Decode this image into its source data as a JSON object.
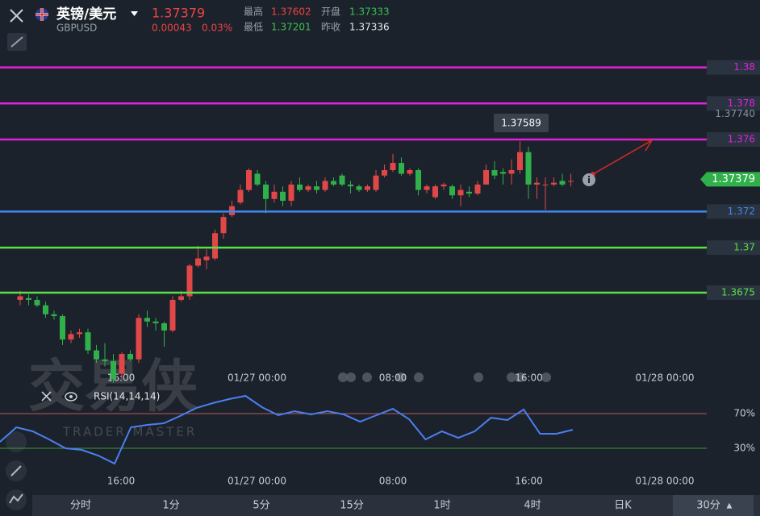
{
  "header": {
    "name": "英镑/美元",
    "symbol": "GBPUSD",
    "price": 1.37379,
    "change": 0.00043,
    "change_pct": "0.03%",
    "high_label": "最高",
    "high": 1.37602,
    "open_label": "开盘",
    "open": 1.37333,
    "low_label": "最低",
    "low": 1.37201,
    "prev_label": "昨收",
    "prev": 1.37336
  },
  "chart": {
    "up_color": "#e04848",
    "down_color": "#2fb04a",
    "levels": [
      {
        "value": 1.38,
        "color": "#e020e0"
      },
      {
        "value": 1.378,
        "color": "#e020e0"
      },
      {
        "value": 1.376,
        "color": "#e020e0"
      },
      {
        "value": 1.372,
        "color": "#3f86f0"
      },
      {
        "value": 1.37,
        "color": "#58e048"
      },
      {
        "value": 1.3675,
        "color": "#58e048"
      }
    ],
    "scale_mark": {
      "value": 1.3774,
      "label": "1.37740"
    },
    "tooltip": 1.37589,
    "candles": [
      [
        1.3671,
        1.3676,
        1.3668,
        1.3673
      ],
      [
        1.3672,
        1.3674,
        1.3668,
        1.3671
      ],
      [
        1.3671,
        1.3673,
        1.3667,
        1.3668
      ],
      [
        1.3668,
        1.367,
        1.3661,
        1.3663
      ],
      [
        1.3663,
        1.3665,
        1.366,
        1.3662
      ],
      [
        1.3662,
        1.3663,
        1.3646,
        1.3649
      ],
      [
        1.3649,
        1.3654,
        1.3647,
        1.3652
      ],
      [
        1.3652,
        1.3655,
        1.365,
        1.3653
      ],
      [
        1.3653,
        1.3655,
        1.3641,
        1.3643
      ],
      [
        1.3643,
        1.3646,
        1.3636,
        1.3638
      ],
      [
        1.3638,
        1.3647,
        1.3634,
        1.3637
      ],
      [
        1.3637,
        1.3641,
        1.3625,
        1.3627
      ],
      [
        1.363,
        1.3642,
        1.3627,
        1.3641
      ],
      [
        1.3641,
        1.3643,
        1.3637,
        1.3638
      ],
      [
        1.3638,
        1.3663,
        1.3636,
        1.3661
      ],
      [
        1.3661,
        1.3665,
        1.3656,
        1.3659
      ],
      [
        1.3659,
        1.3661,
        1.3654,
        1.3658
      ],
      [
        1.3658,
        1.3659,
        1.3645,
        1.3654
      ],
      [
        1.3654,
        1.3673,
        1.3653,
        1.3671
      ],
      [
        1.3671,
        1.3676,
        1.367,
        1.3673
      ],
      [
        1.3673,
        1.3691,
        1.3671,
        1.369
      ],
      [
        1.369,
        1.3701,
        1.3689,
        1.3694
      ],
      [
        1.3693,
        1.3699,
        1.3688,
        1.3695
      ],
      [
        1.3694,
        1.371,
        1.3693,
        1.3708
      ],
      [
        1.3708,
        1.3719,
        1.3705,
        1.3717
      ],
      [
        1.3718,
        1.3726,
        1.3717,
        1.3723
      ],
      [
        1.3725,
        1.3735,
        1.3724,
        1.3732
      ],
      [
        1.3732,
        1.3744,
        1.3731,
        1.3743
      ],
      [
        1.3741,
        1.3743,
        1.3734,
        1.3735
      ],
      [
        1.3735,
        1.3737,
        1.3719,
        1.3727
      ],
      [
        1.3727,
        1.3735,
        1.3725,
        1.3731
      ],
      [
        1.3731,
        1.3734,
        1.3723,
        1.3726
      ],
      [
        1.3726,
        1.3737,
        1.3723,
        1.3735
      ],
      [
        1.3735,
        1.3739,
        1.3731,
        1.3732
      ],
      [
        1.3732,
        1.3735,
        1.3731,
        1.3734
      ],
      [
        1.3734,
        1.3737,
        1.373,
        1.3732
      ],
      [
        1.3732,
        1.3739,
        1.3731,
        1.3737
      ],
      [
        1.3737,
        1.3739,
        1.3734,
        1.3735
      ],
      [
        1.374,
        1.3741,
        1.3734,
        1.3735
      ],
      [
        1.3735,
        1.3737,
        1.373,
        1.3734
      ],
      [
        1.3734,
        1.3735,
        1.3731,
        1.3732
      ],
      [
        1.3732,
        1.3735,
        1.3731,
        1.3734
      ],
      [
        1.3732,
        1.3743,
        1.3731,
        1.374
      ],
      [
        1.374,
        1.3746,
        1.3739,
        1.3743
      ],
      [
        1.3743,
        1.3752,
        1.3742,
        1.3747
      ],
      [
        1.3747,
        1.375,
        1.374,
        1.3741
      ],
      [
        1.3741,
        1.3744,
        1.374,
        1.3743
      ],
      [
        1.3743,
        1.3744,
        1.3729,
        1.3732
      ],
      [
        1.3732,
        1.3735,
        1.373,
        1.3734
      ],
      [
        1.3728,
        1.3735,
        1.3727,
        1.3734
      ],
      [
        1.3734,
        1.3736,
        1.3732,
        1.3735
      ],
      [
        1.3734,
        1.3735,
        1.3727,
        1.3729
      ],
      [
        1.3729,
        1.3735,
        1.3723,
        1.3732
      ],
      [
        1.3731,
        1.3734,
        1.3728,
        1.373
      ],
      [
        1.373,
        1.3737,
        1.3729,
        1.3735
      ],
      [
        1.3735,
        1.3746,
        1.3735,
        1.3743
      ],
      [
        1.3743,
        1.3748,
        1.3738,
        1.374
      ],
      [
        1.3742,
        1.3744,
        1.3735,
        1.3741
      ],
      [
        1.3741,
        1.3749,
        1.3735,
        1.3743
      ],
      [
        1.3743,
        1.3759,
        1.3741,
        1.3753
      ],
      [
        1.3753,
        1.3756,
        1.3727,
        1.3735
      ],
      [
        1.3735,
        1.3739,
        1.3727,
        1.3736
      ],
      [
        1.3735,
        1.3739,
        1.3721,
        1.3735
      ],
      [
        1.3735,
        1.3739,
        1.3734,
        1.3736
      ],
      [
        1.3737,
        1.3741,
        1.3734,
        1.3735
      ],
      [
        1.3737,
        1.3741,
        1.3734,
        1.3737
      ]
    ],
    "time_labels": [
      "16:00",
      "01/27 00:00",
      "08:00",
      "16:00",
      "01/28 00:00"
    ]
  },
  "rsi": {
    "label": "RSI(14,14,14)",
    "color": "#4a7ff0",
    "levels": [
      {
        "value": 70,
        "label": "70%",
        "color": "#b85a5a"
      },
      {
        "value": 30,
        "label": "30%",
        "color": "#3c9a3c"
      }
    ],
    "values": [
      37.4,
      54.2,
      49.5,
      40.2,
      30.0,
      28.1,
      21.6,
      12.3,
      54.2,
      57.0,
      58.8,
      67.2,
      76.5,
      82.1,
      86.7,
      90.5,
      77.4,
      68.1,
      72.8,
      69.1,
      72.8,
      69.1,
      60.7,
      68.1,
      75.6,
      63.5,
      40.2,
      49.5,
      42.1,
      49.5,
      65.3,
      62.6,
      74.7,
      46.7,
      46.7,
      51.4
    ]
  },
  "watermark": {
    "title": "交易侠",
    "subtitle": "TRADER MASTER"
  },
  "tabs": [
    "分时",
    "1分",
    "5分",
    "15分",
    "1时",
    "4时",
    "日K",
    "30分"
  ],
  "selected_tab_marker": "▲"
}
